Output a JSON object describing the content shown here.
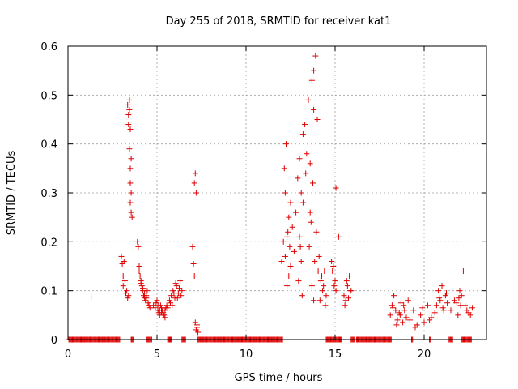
{
  "chart_data": {
    "type": "scatter",
    "title": "Day 255 of 2018, SRMTID for receiver kat1",
    "xlabel": "GPS time / hours",
    "ylabel": "SRMTID / TECUs",
    "xlim": [
      0,
      23.5
    ],
    "ylim": [
      0,
      0.6
    ],
    "xticks": [
      0,
      5,
      10,
      15,
      20
    ],
    "yticks": [
      0,
      0.1,
      0.2,
      0.3,
      0.4,
      0.5,
      0.6
    ],
    "xtick_labels": [
      "0",
      "5",
      "10",
      "15",
      "20"
    ],
    "ytick_labels": [
      "0",
      "0.1",
      "0.2",
      "0.3",
      "0.4",
      "0.5",
      "0.6"
    ],
    "grid": true,
    "marker": "+",
    "color": "#e00000",
    "series": [
      {
        "name": "kat1",
        "x": [
          0.1,
          0.3,
          0.5,
          0.7,
          0.9,
          1.1,
          1.3,
          1.5,
          1.7,
          1.9,
          2.1,
          2.3,
          2.5,
          2.7,
          2.9,
          3.6,
          4.5,
          5.7,
          6.5,
          7.4,
          7.6,
          7.8,
          8.0,
          8.2,
          8.4,
          8.6,
          8.8,
          9.0,
          9.2,
          9.4,
          9.6,
          9.8,
          10.0,
          10.2,
          10.4,
          10.6,
          10.8,
          11.0,
          11.2,
          11.4,
          11.6,
          11.8,
          12.0,
          14.6,
          14.9,
          15.3,
          16.0,
          16.3,
          16.6,
          16.9,
          17.2,
          17.5,
          17.8,
          18.1,
          19.3,
          20.3,
          21.5,
          22.2,
          22.6,
          1.3,
          3.0,
          3.05,
          3.1,
          3.15,
          3.2,
          3.1,
          3.25,
          3.3,
          3.35,
          3.4,
          3.45,
          3.35,
          3.4,
          3.45,
          3.5,
          3.5,
          3.55,
          3.5,
          3.55,
          3.6,
          3.45,
          3.4,
          3.5,
          3.55,
          3.9,
          3.95,
          4.0,
          4.05,
          4.1,
          4.15,
          4.2,
          4.25,
          4.3,
          4.35,
          4.4,
          4.45,
          4.5,
          4.55,
          4.6,
          4.0,
          4.1,
          4.2,
          4.3,
          4.4,
          4.8,
          4.9,
          5.0,
          5.05,
          5.1,
          5.15,
          5.2,
          5.25,
          5.3,
          5.35,
          5.4,
          5.45,
          5.5,
          4.95,
          5.05,
          5.15,
          5.25,
          5.35,
          5.45,
          5.55,
          5.6,
          5.7,
          5.8,
          5.9,
          6.0,
          6.1,
          6.2,
          6.3,
          6.4,
          5.75,
          5.85,
          5.95,
          6.05,
          6.15,
          6.25,
          6.35,
          7.0,
          7.05,
          7.1,
          7.15,
          7.1,
          7.2,
          7.25,
          7.2,
          7.3,
          7.15,
          7.25,
          12.0,
          12.1,
          12.2,
          12.3,
          12.4,
          12.5,
          12.3,
          12.4,
          12.2,
          12.35,
          12.45,
          12.15,
          12.25,
          12.5,
          12.6,
          12.7,
          12.8,
          12.9,
          13.0,
          13.1,
          13.2,
          13.3,
          13.0,
          13.1,
          13.2,
          12.95,
          13.05,
          13.15,
          13.25,
          13.35,
          13.4,
          13.5,
          13.6,
          13.7,
          13.8,
          13.9,
          14.0,
          13.65,
          13.75,
          13.85,
          13.95,
          14.05,
          13.7,
          13.8,
          13.55,
          13.6,
          13.8,
          14.1,
          14.2,
          14.3,
          14.4,
          14.5,
          14.15,
          14.25,
          14.35,
          14.45,
          14.8,
          14.9,
          15.0,
          14.85,
          14.95,
          15.05,
          15.2,
          15.05,
          15.5,
          15.6,
          15.7,
          15.8,
          15.9,
          15.55,
          15.65,
          15.75,
          15.85,
          18.1,
          18.2,
          18.3,
          18.4,
          18.5,
          18.6,
          18.7,
          18.8,
          18.9,
          19.0,
          19.1,
          18.25,
          18.45,
          18.65,
          18.85,
          19.2,
          19.4,
          19.6,
          19.8,
          20.0,
          20.2,
          20.4,
          20.6,
          19.5,
          19.9,
          20.3,
          20.7,
          20.8,
          20.9,
          21.0,
          21.1,
          21.2,
          21.3,
          20.85,
          21.05,
          21.25,
          21.5,
          21.7,
          21.9,
          22.1,
          22.3,
          22.5,
          22.7,
          21.8,
          22.0,
          22.2,
          22.4,
          22.6,
          21.95,
          22.05
        ],
        "y": [
          0,
          0,
          0,
          0,
          0,
          0,
          0,
          0,
          0,
          0,
          0,
          0,
          0,
          0,
          0,
          0,
          0,
          0,
          0,
          0,
          0,
          0,
          0,
          0,
          0,
          0,
          0,
          0,
          0,
          0,
          0,
          0,
          0,
          0,
          0,
          0,
          0,
          0,
          0,
          0,
          0,
          0,
          0,
          0,
          0,
          0,
          0,
          0,
          0,
          0,
          0,
          0,
          0,
          0,
          0,
          0,
          0,
          0,
          0,
          0.087,
          0.17,
          0.155,
          0.13,
          0.16,
          0.12,
          0.11,
          0.095,
          0.1,
          0.085,
          0.09,
          0.49,
          0.48,
          0.44,
          0.39,
          0.35,
          0.32,
          0.3,
          0.28,
          0.26,
          0.25,
          0.47,
          0.46,
          0.43,
          0.37,
          0.2,
          0.19,
          0.15,
          0.13,
          0.12,
          0.11,
          0.1,
          0.09,
          0.085,
          0.08,
          0.09,
          0.1,
          0.075,
          0.07,
          0.065,
          0.14,
          0.115,
          0.105,
          0.095,
          0.085,
          0.07,
          0.065,
          0.08,
          0.06,
          0.055,
          0.05,
          0.07,
          0.065,
          0.06,
          0.055,
          0.05,
          0.06,
          0.065,
          0.075,
          0.07,
          0.06,
          0.055,
          0.05,
          0.045,
          0.07,
          0.065,
          0.08,
          0.09,
          0.1,
          0.085,
          0.11,
          0.095,
          0.12,
          0.1,
          0.075,
          0.07,
          0.095,
          0.115,
          0.085,
          0.105,
          0.09,
          0.19,
          0.155,
          0.13,
          0.34,
          0.32,
          0.3,
          0.03,
          0.02,
          0.015,
          0.035,
          0.025,
          0.16,
          0.2,
          0.17,
          0.21,
          0.25,
          0.15,
          0.11,
          0.13,
          0.3,
          0.22,
          0.19,
          0.35,
          0.4,
          0.28,
          0.23,
          0.18,
          0.26,
          0.33,
          0.37,
          0.3,
          0.42,
          0.44,
          0.21,
          0.16,
          0.28,
          0.12,
          0.19,
          0.09,
          0.14,
          0.34,
          0.38,
          0.49,
          0.36,
          0.53,
          0.55,
          0.58,
          0.45,
          0.24,
          0.32,
          0.16,
          0.22,
          0.14,
          0.11,
          0.08,
          0.19,
          0.26,
          0.47,
          0.17,
          0.12,
          0.1,
          0.14,
          0.09,
          0.08,
          0.13,
          0.11,
          0.07,
          0.16,
          0.15,
          0.12,
          0.14,
          0.11,
          0.1,
          0.21,
          0.31,
          0.09,
          0.08,
          0.11,
          0.13,
          0.1,
          0.07,
          0.12,
          0.085,
          0.1,
          0.05,
          0.07,
          0.09,
          0.06,
          0.04,
          0.055,
          0.075,
          0.035,
          0.06,
          0.045,
          0.08,
          0.065,
          0.03,
          0.05,
          0.07,
          0.04,
          0.06,
          0.03,
          0.05,
          0.035,
          0.07,
          0.045,
          0.055,
          0.025,
          0.065,
          0.04,
          0.07,
          0.1,
          0.08,
          0.11,
          0.06,
          0.09,
          0.075,
          0.085,
          0.065,
          0.095,
          0.06,
          0.08,
          0.05,
          0.09,
          0.07,
          0.055,
          0.065,
          0.075,
          0.1,
          0.14,
          0.06,
          0.05,
          0.085,
          0.07
        ]
      }
    ]
  }
}
